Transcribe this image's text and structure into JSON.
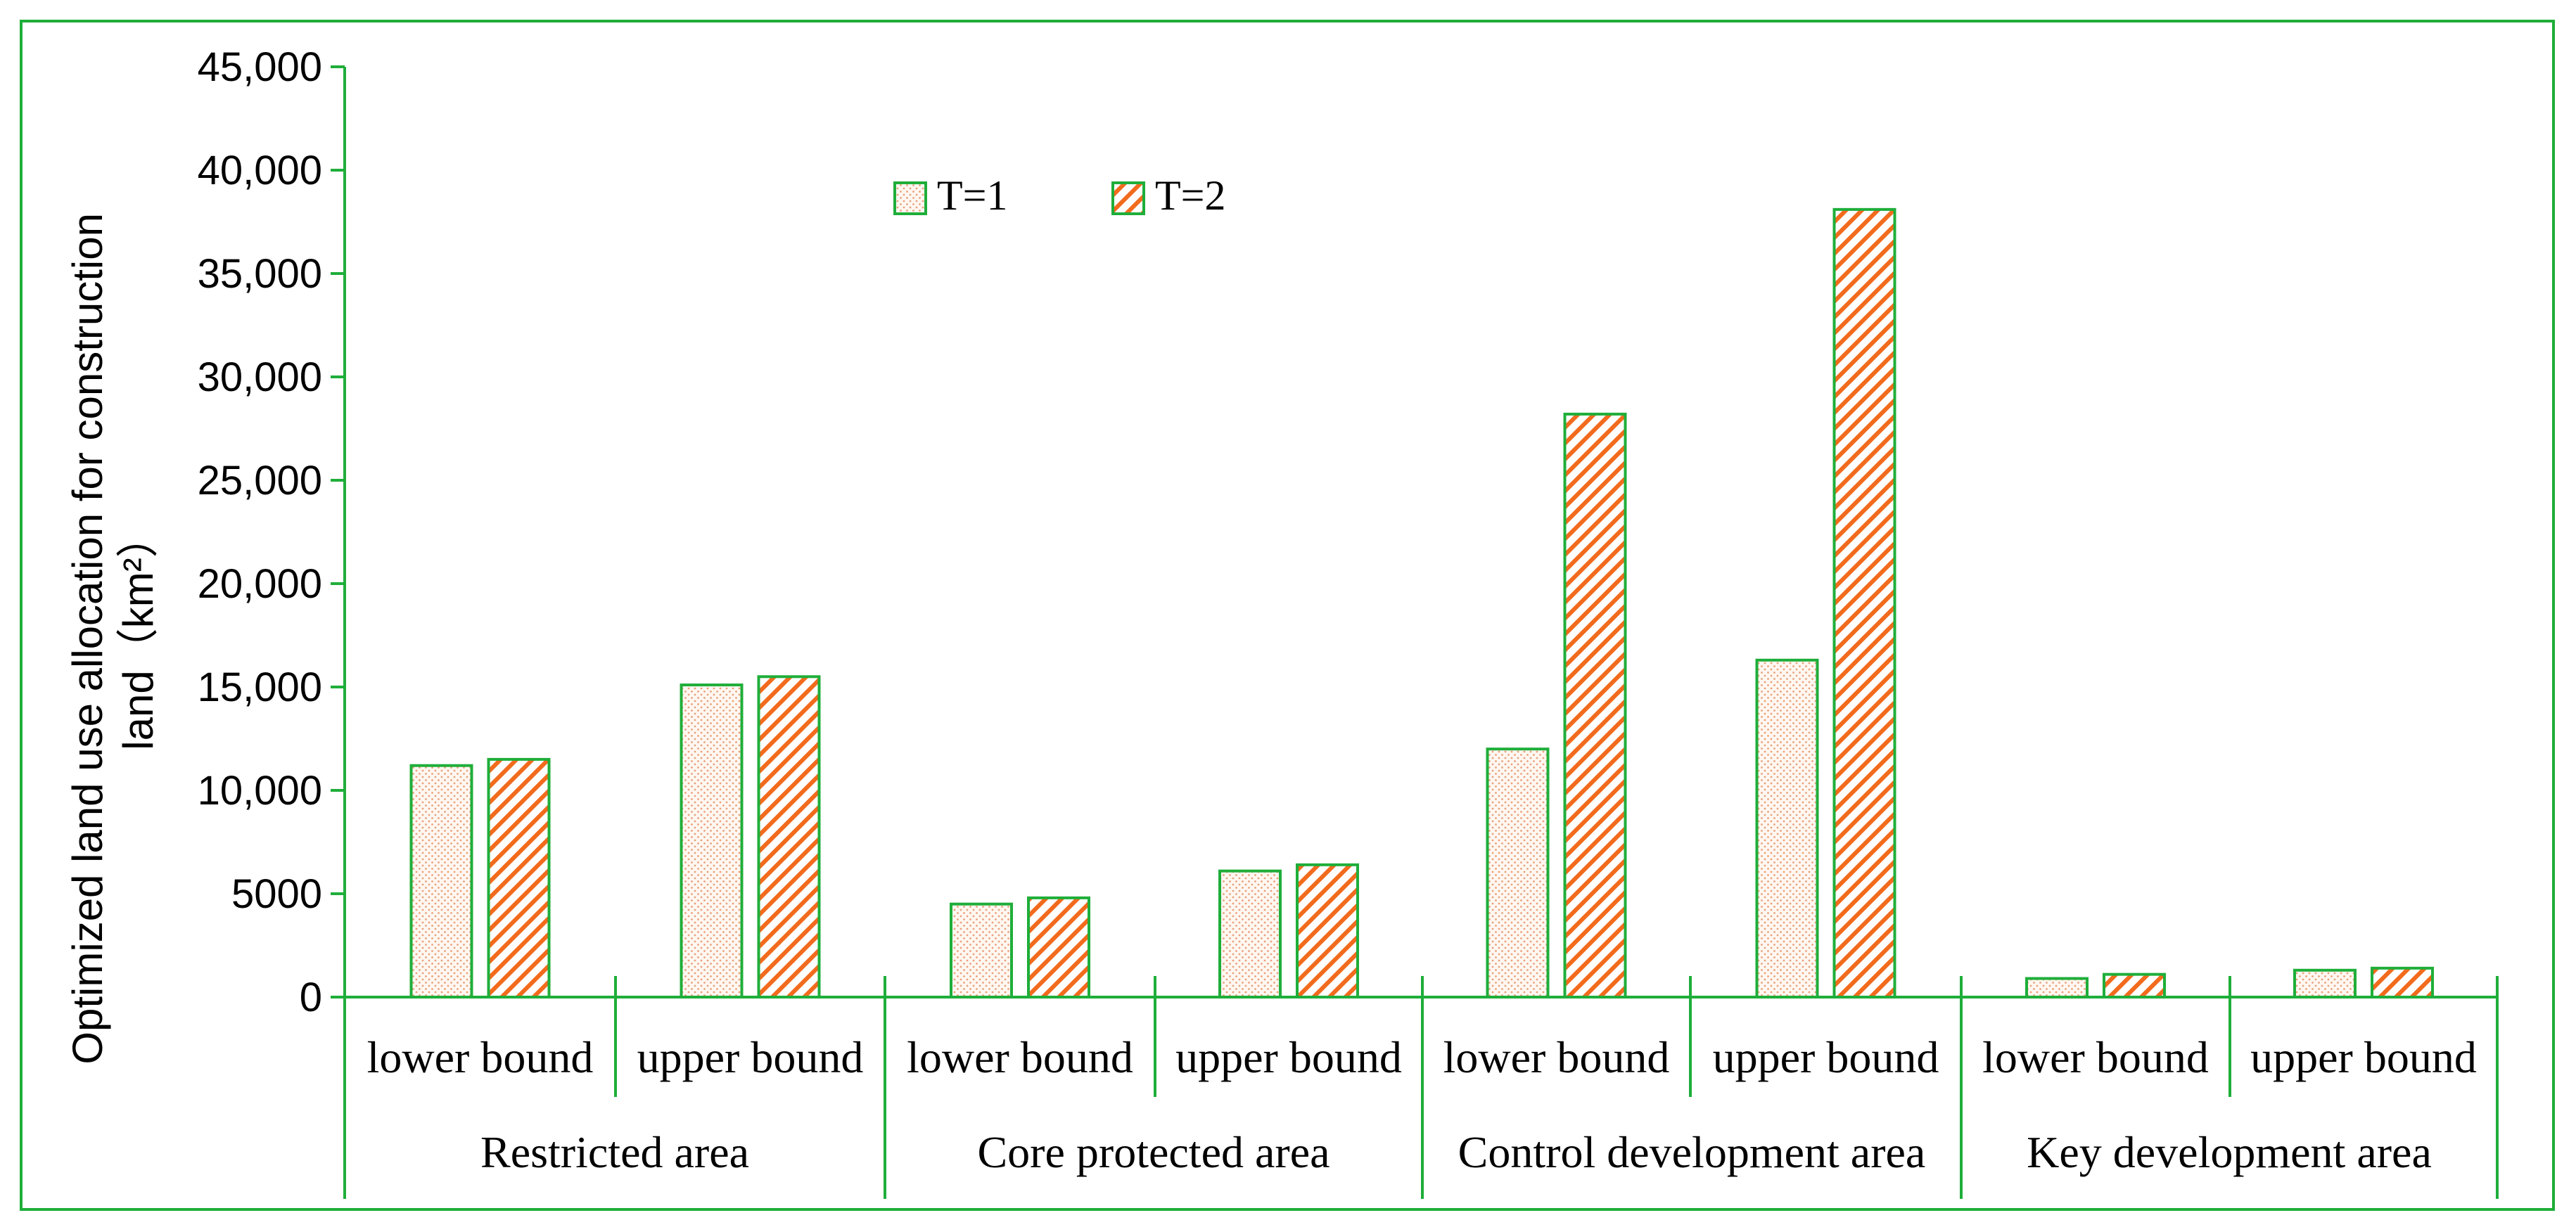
{
  "chart_data": {
    "type": "bar",
    "ylabel_line1": "Optimized land use allocation for construction",
    "ylabel_line2": "land（km²）",
    "ylim": [
      0,
      45000
    ],
    "yticks": [
      0,
      5000,
      10000,
      15000,
      20000,
      25000,
      30000,
      35000,
      40000,
      45000
    ],
    "ytick_labels": [
      "0",
      "5000",
      "10,000",
      "15,000",
      "20,000",
      "25,000",
      "30,000",
      "35,000",
      "40,000",
      "45,000"
    ],
    "legend": {
      "position": "top-center"
    },
    "series": [
      {
        "name": "T=1",
        "pattern": "dots",
        "values": [
          11200,
          15100,
          4500,
          6100,
          12000,
          16300,
          900,
          1300
        ]
      },
      {
        "name": "T=2",
        "pattern": "hatch",
        "values": [
          11500,
          15500,
          4800,
          6400,
          28200,
          38100,
          1100,
          1400
        ]
      }
    ],
    "categories": [
      "lower bound",
      "upper bound",
      "lower bound",
      "upper bound",
      "lower bound",
      "upper bound",
      "lower bound",
      "upper bound"
    ],
    "groups": [
      "Restricted area",
      "Core protected area",
      "Control development area",
      "Key development area"
    ],
    "colors": {
      "frame": "#1fae3a",
      "t1_dots": "#e8a27d",
      "t1_bg": "#fff7f1",
      "t2_hatch": "#f26b1d",
      "text": "#000000"
    }
  }
}
